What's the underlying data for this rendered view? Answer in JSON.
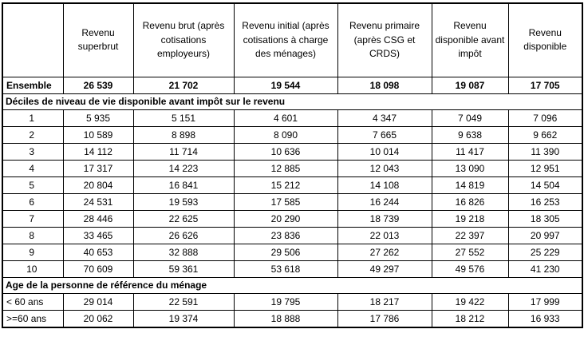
{
  "table": {
    "corner_label": "",
    "columns": [
      "Revenu superbrut",
      "Revenu brut (après cotisations employeurs)",
      "Revenu initial (après cotisations à charge des ménages)",
      "Revenu primaire (après CSG et CRDS)",
      "Revenu disponible avant impôt",
      "Revenu disponible"
    ],
    "rows": [
      {
        "type": "summary",
        "label": "Ensemble",
        "values": [
          "26 539",
          "21 702",
          "19 544",
          "18 098",
          "19 087",
          "17 705"
        ]
      },
      {
        "type": "section",
        "label": "Déciles de niveau de vie disponible avant impôt sur le revenu"
      },
      {
        "type": "decile",
        "label": "1",
        "values": [
          "5 935",
          "5 151",
          "4 601",
          "4 347",
          "7 049",
          "7 096"
        ]
      },
      {
        "type": "decile",
        "label": "2",
        "values": [
          "10 589",
          "8 898",
          "8 090",
          "7 665",
          "9 638",
          "9 662"
        ]
      },
      {
        "type": "decile",
        "label": "3",
        "values": [
          "14 112",
          "11 714",
          "10 636",
          "10 014",
          "11 417",
          "11 390"
        ]
      },
      {
        "type": "decile",
        "label": "4",
        "values": [
          "17 317",
          "14 223",
          "12 885",
          "12 043",
          "13 090",
          "12 951"
        ]
      },
      {
        "type": "decile",
        "label": "5",
        "values": [
          "20 804",
          "16 841",
          "15 212",
          "14 108",
          "14 819",
          "14 504"
        ]
      },
      {
        "type": "decile",
        "label": "6",
        "values": [
          "24 531",
          "19 593",
          "17 585",
          "16 244",
          "16 826",
          "16 253"
        ]
      },
      {
        "type": "decile",
        "label": "7",
        "values": [
          "28 446",
          "22 625",
          "20 290",
          "18 739",
          "19 218",
          "18 305"
        ]
      },
      {
        "type": "decile",
        "label": "8",
        "values": [
          "33 465",
          "26 626",
          "23 836",
          "22 013",
          "22 397",
          "20 997"
        ]
      },
      {
        "type": "decile",
        "label": "9",
        "values": [
          "40 653",
          "32 888",
          "29 506",
          "27 262",
          "27 552",
          "25 229"
        ]
      },
      {
        "type": "decile",
        "label": "10",
        "values": [
          "70 609",
          "59 361",
          "53 618",
          "49 297",
          "49 576",
          "41 230"
        ]
      },
      {
        "type": "section",
        "label": "Age de la personne de référence du ménage"
      },
      {
        "type": "age",
        "label": "< 60 ans",
        "values": [
          "29 014",
          "22 591",
          "19 795",
          "18 217",
          "19 422",
          "17 999"
        ]
      },
      {
        "type": "age",
        "label": ">=60 ans",
        "values": [
          "20 062",
          "19 374",
          "18 888",
          "17 786",
          "18 212",
          "16 933"
        ]
      }
    ]
  }
}
